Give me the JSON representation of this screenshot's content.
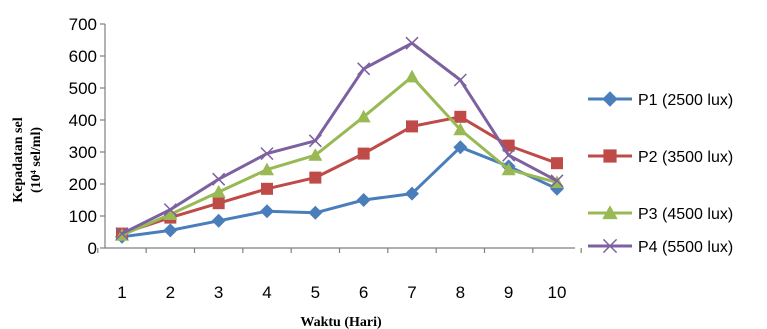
{
  "chart_data": {
    "type": "line",
    "xlabel": "Waktu (Hari)",
    "ylabel_line1": "Kepadatan sel",
    "ylabel_line2": "(10⁴ sel/ml)",
    "x": [
      1,
      2,
      3,
      4,
      5,
      6,
      7,
      8,
      9,
      10
    ],
    "ylim": [
      0,
      700
    ],
    "yticks": [
      0,
      100,
      200,
      300,
      400,
      500,
      600,
      700
    ],
    "legend_position": "right",
    "grid": false,
    "series": [
      {
        "name": "P1 (2500 lux)",
        "color": "#4a7ebb",
        "marker": "diamond",
        "values": [
          35,
          55,
          85,
          115,
          110,
          150,
          170,
          315,
          255,
          185
        ]
      },
      {
        "name": "P2 (3500 lux)",
        "color": "#be4b48",
        "marker": "square",
        "values": [
          45,
          95,
          140,
          185,
          220,
          295,
          380,
          410,
          320,
          265
        ]
      },
      {
        "name": "P3 (4500 lux)",
        "color": "#98b954",
        "marker": "triangle",
        "values": [
          40,
          105,
          175,
          245,
          290,
          410,
          535,
          370,
          245,
          205
        ]
      },
      {
        "name": "P4 (5500 lux)",
        "color": "#7d60a0",
        "marker": "x",
        "values": [
          45,
          120,
          215,
          295,
          335,
          560,
          640,
          525,
          290,
          210
        ]
      }
    ]
  }
}
